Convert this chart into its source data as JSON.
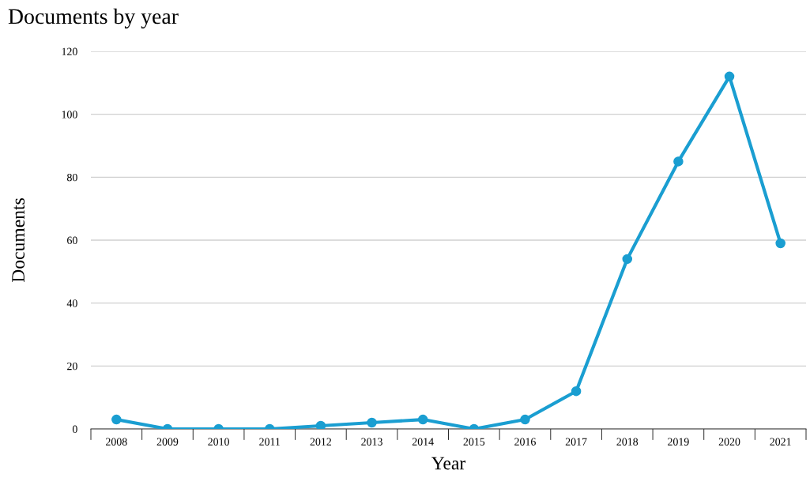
{
  "chart_data": {
    "type": "line",
    "title": "Documents by year",
    "xlabel": "Year",
    "ylabel": "Documents",
    "categories": [
      "2008",
      "2009",
      "2010",
      "2011",
      "2012",
      "2013",
      "2014",
      "2015",
      "2016",
      "2017",
      "2018",
      "2019",
      "2020",
      "2021"
    ],
    "series": [
      {
        "color": "#1a9ed1",
        "values": [
          3,
          0,
          0,
          0,
          1,
          2,
          3,
          0,
          3,
          12,
          54,
          85,
          112,
          59
        ]
      }
    ],
    "ylim": [
      0,
      120
    ],
    "yticks": [
      0,
      20,
      40,
      60,
      80,
      100,
      120
    ],
    "grid": "y",
    "marker": "circle",
    "line_style": "solid",
    "legend": false
  }
}
